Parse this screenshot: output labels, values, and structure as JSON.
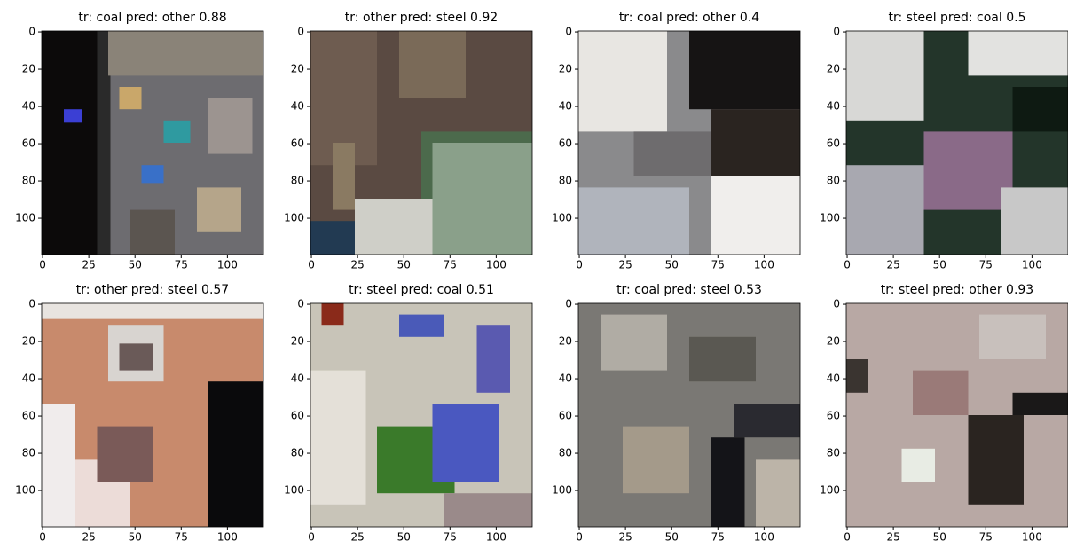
{
  "chart_data": [
    {
      "type": "image",
      "title": "tr: coal  pred: other 0.88",
      "xlim": [
        -0.5,
        119.5
      ],
      "ylim": [
        119.5,
        -0.5
      ],
      "xticks": [
        0,
        25,
        50,
        75,
        100
      ],
      "yticks": [
        0,
        20,
        40,
        60,
        80,
        100
      ]
    },
    {
      "type": "image",
      "title": "tr: other  pred: steel 0.92",
      "xlim": [
        -0.5,
        119.5
      ],
      "ylim": [
        119.5,
        -0.5
      ],
      "xticks": [
        0,
        25,
        50,
        75,
        100
      ],
      "yticks": [
        0,
        20,
        40,
        60,
        80,
        100
      ]
    },
    {
      "type": "image",
      "title": "tr: coal  pred: other 0.4",
      "xlim": [
        -0.5,
        119.5
      ],
      "ylim": [
        119.5,
        -0.5
      ],
      "xticks": [
        0,
        25,
        50,
        75,
        100
      ],
      "yticks": [
        0,
        20,
        40,
        60,
        80,
        100
      ]
    },
    {
      "type": "image",
      "title": "tr: steel  pred: coal 0.5",
      "xlim": [
        -0.5,
        119.5
      ],
      "ylim": [
        119.5,
        -0.5
      ],
      "xticks": [
        0,
        25,
        50,
        75,
        100
      ],
      "yticks": [
        0,
        20,
        40,
        60,
        80,
        100
      ]
    },
    {
      "type": "image",
      "title": "tr: other  pred: steel 0.57",
      "xlim": [
        -0.5,
        119.5
      ],
      "ylim": [
        119.5,
        -0.5
      ],
      "xticks": [
        0,
        25,
        50,
        75,
        100
      ],
      "yticks": [
        0,
        20,
        40,
        60,
        80,
        100
      ]
    },
    {
      "type": "image",
      "title": "tr: steel  pred: coal 0.51",
      "xlim": [
        -0.5,
        119.5
      ],
      "ylim": [
        119.5,
        -0.5
      ],
      "xticks": [
        0,
        25,
        50,
        75,
        100
      ],
      "yticks": [
        0,
        20,
        40,
        60,
        80,
        100
      ]
    },
    {
      "type": "image",
      "title": "tr: coal  pred: steel 0.53",
      "xlim": [
        -0.5,
        119.5
      ],
      "ylim": [
        119.5,
        -0.5
      ],
      "xticks": [
        0,
        25,
        50,
        75,
        100
      ],
      "yticks": [
        0,
        20,
        40,
        60,
        80,
        100
      ]
    },
    {
      "type": "image",
      "title": "tr: steel  pred: other 0.93",
      "xlim": [
        -0.5,
        119.5
      ],
      "ylim": [
        119.5,
        -0.5
      ],
      "xticks": [
        0,
        25,
        50,
        75,
        100
      ],
      "yticks": [
        0,
        20,
        40,
        60,
        80,
        100
      ]
    }
  ]
}
